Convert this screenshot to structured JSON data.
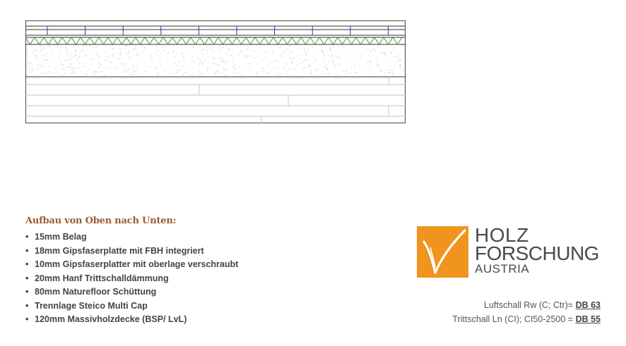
{
  "section_drawing": {
    "layers_top_to_bottom": [
      "Belag",
      "Gipsfaserplatte mit FBH",
      "Gipsfaserplatte oberlage",
      "Hanf Trittschalldämmung",
      "Naturefloor Schüttung",
      "Trennlage",
      "Massivholzdecke"
    ],
    "colors": {
      "outline": "#333333",
      "joints": "#2e2ebf",
      "insulation": "#3a8f3a",
      "wood_line": "#c9c3b0"
    }
  },
  "legend": {
    "title": "Aufbau von Oben nach Unten:",
    "items": [
      "15mm Belag",
      "18mm Gipsfaserplatte mit FBH integriert",
      "10mm Gipsfaserplatter mit oberlage verschraubt",
      "20mm Hanf Trittschalldämmung",
      "80mm Naturefloor Schüttung",
      "Trennlage Steico Multi Cap",
      "120mm Massivholzdecke (BSP/ LvL)"
    ],
    "bullet": "•"
  },
  "logo": {
    "line1": "HOLZ",
    "line2": "FORSCHUNG",
    "line3": "AUSTRIA",
    "colors": {
      "orange": "#f0941f",
      "text": "#4a4a4a"
    }
  },
  "acoustics": {
    "air_label": "Luftschall Rw (C; Ctr)= ",
    "air_value": "DB 63",
    "impact_label": "Trittschall Ln (CI); CI50-2500 = ",
    "impact_value": "DB 55"
  }
}
